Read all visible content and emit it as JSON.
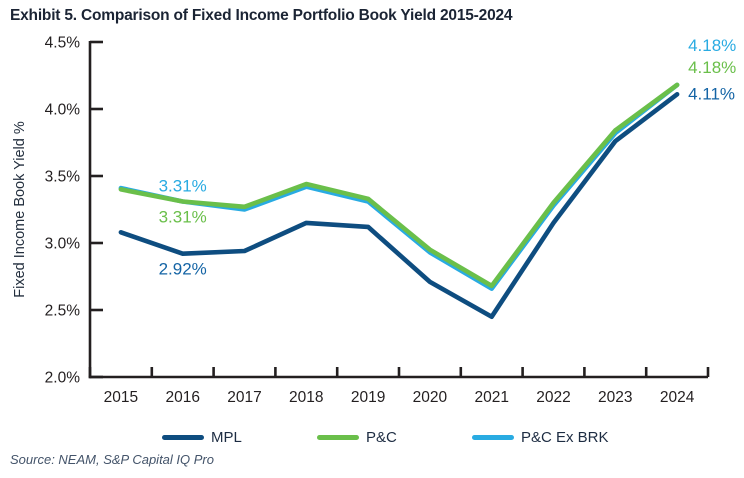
{
  "source": "Source: NEAM, S&P Capital IQ Pro",
  "colors": {
    "title_text": "#1b2434",
    "axis": "#231f20",
    "tick_label": "#231f20",
    "legend_text": "#1d2c42",
    "source_text": "#44546a",
    "mpl_line": "#0e4d80",
    "pc_line": "#6abf4a",
    "pc_ex_brk_line": "#29abe2",
    "mpl_label": "#1464a5"
  },
  "chart_data": {
    "type": "line",
    "title": "Exhibit 5. Comparison of Fixed Income Portfolio Book Yield 2015-2024",
    "xlabel": "",
    "ylabel": "Fixed Income Book Yield %",
    "categories": [
      "2015",
      "2016",
      "2017",
      "2018",
      "2019",
      "2020",
      "2021",
      "2022",
      "2023",
      "2024"
    ],
    "ylim": [
      2.0,
      4.5
    ],
    "yticks": {
      "values": [
        2.0,
        2.5,
        3.0,
        3.5,
        4.0,
        4.5
      ],
      "labels": [
        "2.0%",
        "2.5%",
        "3.0%",
        "3.5%",
        "4.0%",
        "4.5%"
      ]
    },
    "grid": false,
    "legend_position": "bottom",
    "series": [
      {
        "name": "MPL",
        "color": "#0e4d80",
        "values": [
          3.08,
          2.92,
          2.94,
          3.15,
          3.12,
          2.71,
          2.45,
          3.15,
          3.76,
          4.11
        ]
      },
      {
        "name": "P&C",
        "color": "#6abf4a",
        "values": [
          3.4,
          3.31,
          3.27,
          3.44,
          3.33,
          2.95,
          2.68,
          3.3,
          3.84,
          4.18
        ]
      },
      {
        "name": "P&C Ex BRK",
        "color": "#29abe2",
        "values": [
          3.41,
          3.31,
          3.25,
          3.42,
          3.31,
          2.93,
          2.66,
          3.28,
          3.82,
          4.18
        ]
      }
    ],
    "annotations": [
      {
        "series": "P&C Ex BRK",
        "category": "2016",
        "text": "3.31%",
        "color": "#29abe2",
        "placement": "above"
      },
      {
        "series": "P&C",
        "category": "2016",
        "text": "3.31%",
        "color": "#6abf4a",
        "placement": "below"
      },
      {
        "series": "MPL",
        "category": "2016",
        "text": "2.92%",
        "color": "#1464a5",
        "placement": "below"
      },
      {
        "series": "P&C Ex BRK",
        "category": "2024",
        "text": "4.18%",
        "color": "#29abe2",
        "placement": "end-top"
      },
      {
        "series": "P&C",
        "category": "2024",
        "text": "4.18%",
        "color": "#6abf4a",
        "placement": "end-middle"
      },
      {
        "series": "MPL",
        "category": "2024",
        "text": "4.11%",
        "color": "#1464a5",
        "placement": "end-bottom"
      }
    ]
  }
}
